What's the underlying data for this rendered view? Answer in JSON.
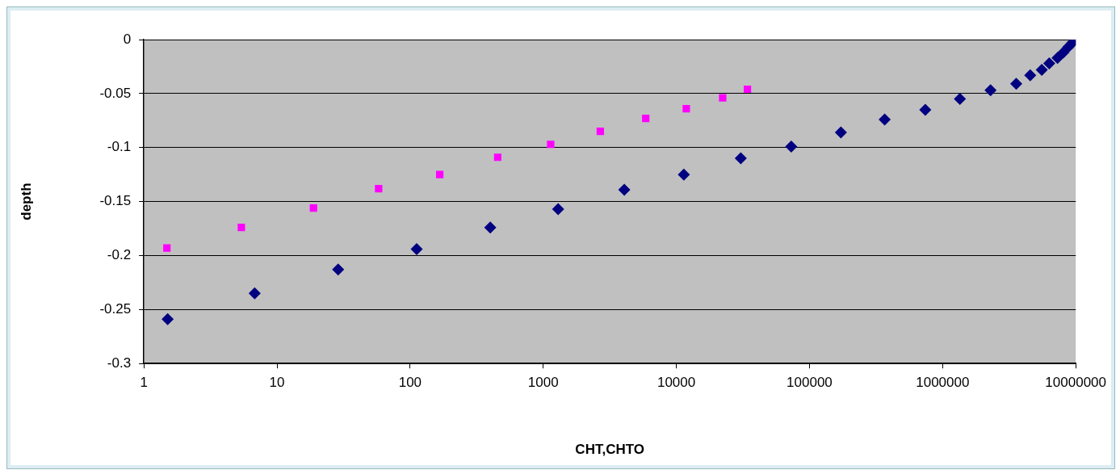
{
  "chart_data": {
    "type": "scatter",
    "xlabel": "CHT,CHTO",
    "ylabel": "depth",
    "log": "x",
    "grid": "y",
    "legend": false,
    "xlim": [
      1,
      10000000
    ],
    "xticks": [
      1,
      10,
      100,
      1000,
      10000,
      100000,
      1000000,
      10000000
    ],
    "ylim": [
      -0.3,
      0
    ],
    "yticks": [
      -0.3,
      -0.25,
      -0.2,
      -0.15,
      -0.1,
      -0.05,
      0
    ],
    "series": [
      {
        "color": "#000080",
        "marker": "diamond",
        "x": [
          1.51,
          6.8,
          28.8,
          112,
          400,
          1294,
          4064,
          11380,
          30480,
          72950,
          172200,
          367000,
          741000,
          1349000,
          2291000,
          3573000,
          4550000,
          5560000,
          6324000,
          7295000,
          8070000,
          8790000,
          9440000,
          10000000
        ],
        "values": [
          -0.259,
          -0.235,
          -0.213,
          -0.194,
          -0.174,
          -0.157,
          -0.139,
          -0.125,
          -0.11,
          -0.099,
          -0.086,
          -0.074,
          -0.065,
          -0.055,
          -0.047,
          -0.041,
          -0.033,
          -0.028,
          -0.022,
          -0.017,
          -0.012,
          -0.007,
          -0.003,
          0
        ]
      },
      {
        "color": "#ff00ff",
        "marker": "square",
        "x": [
          1.49,
          5.4,
          18.8,
          58,
          167,
          455,
          1137,
          2684,
          5890,
          11880,
          22280,
          34200
        ],
        "values": [
          -0.193,
          -0.174,
          -0.156,
          -0.138,
          -0.125,
          -0.109,
          -0.097,
          -0.085,
          -0.073,
          -0.064,
          -0.054,
          -0.046
        ]
      }
    ]
  }
}
